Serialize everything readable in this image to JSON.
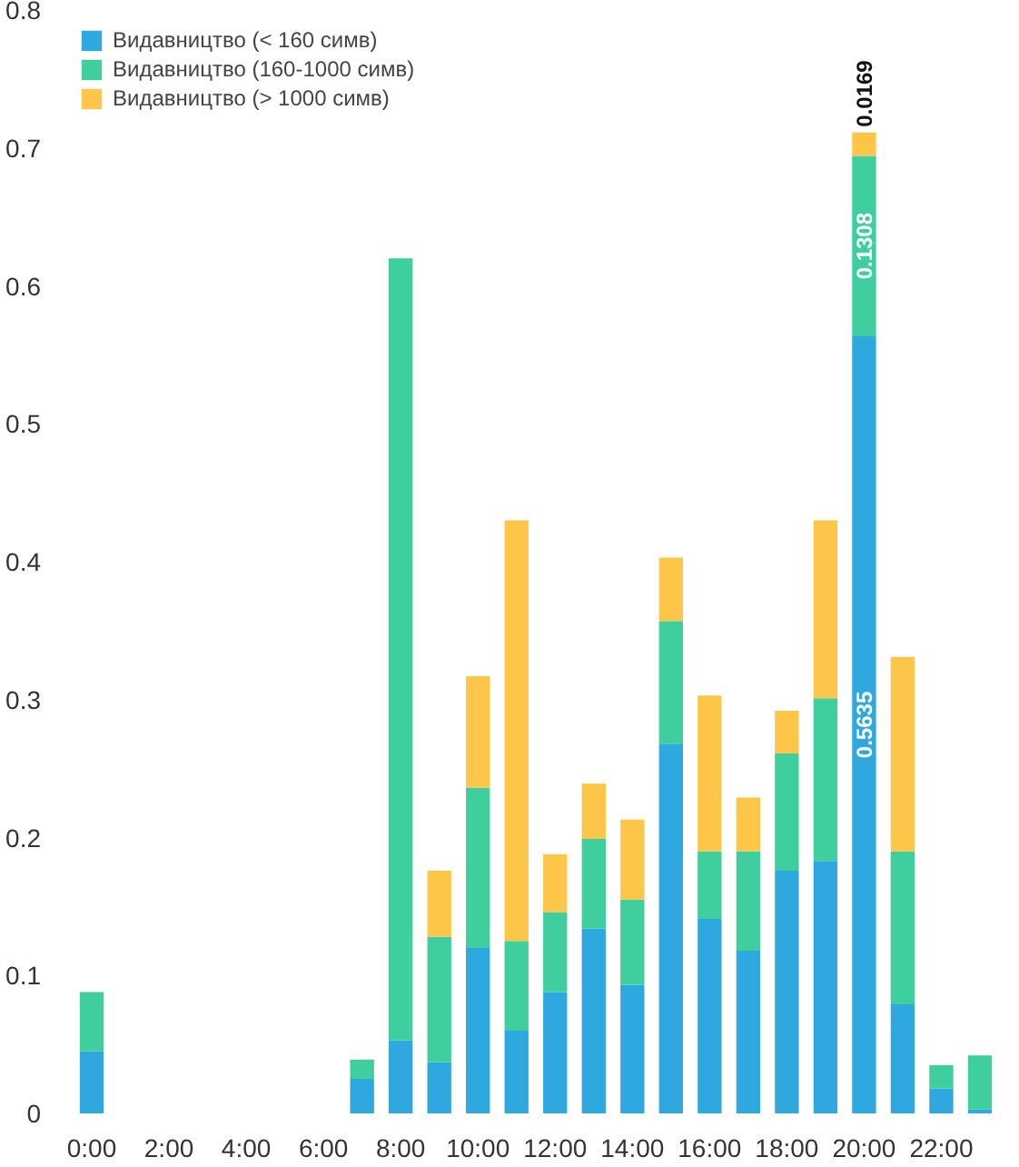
{
  "chart_data": {
    "type": "bar",
    "stacked": true,
    "categories": [
      "0:00",
      null,
      "2:00",
      null,
      "4:00",
      null,
      "6:00",
      null,
      "8:00",
      null,
      "10:00",
      null,
      "12:00",
      null,
      "14:00",
      null,
      "16:00",
      null,
      "18:00",
      null,
      "20:00",
      null,
      "22:00",
      null
    ],
    "ylim": [
      0,
      0.8
    ],
    "yticks": [
      0,
      0.1,
      0.2,
      0.3,
      0.4,
      0.5,
      0.6,
      0.7,
      0.8
    ],
    "grid": false,
    "legend": "top left",
    "series": [
      {
        "name": "Видавництво (< 160 симв)",
        "color": "#2fa8e0",
        "values": [
          0.045,
          0,
          0,
          0,
          0,
          0,
          0,
          0.025,
          0.053,
          0.037,
          0.12,
          0.06,
          0.088,
          0.134,
          0.093,
          0.268,
          0.141,
          0.118,
          0.176,
          0.183,
          0.5635,
          0.079,
          0.018,
          0.003
        ],
        "value_labels": [
          null,
          null,
          null,
          null,
          null,
          null,
          null,
          null,
          null,
          null,
          null,
          null,
          null,
          null,
          null,
          null,
          null,
          null,
          null,
          null,
          "0.5635",
          null,
          null,
          null
        ]
      },
      {
        "name": "Видавництво (160-1000 симв)",
        "color": "#3fcf9f",
        "values": [
          0.043,
          0,
          0,
          0,
          0,
          0,
          0,
          0.014,
          0.567,
          0.091,
          0.116,
          0.065,
          0.058,
          0.065,
          0.062,
          0.089,
          0.049,
          0.072,
          0.085,
          0.118,
          0.1308,
          0.111,
          0.017,
          0.039
        ],
        "value_labels": [
          null,
          null,
          null,
          null,
          null,
          null,
          null,
          null,
          null,
          null,
          null,
          null,
          null,
          null,
          null,
          null,
          null,
          null,
          null,
          null,
          "0.1308",
          null,
          null,
          null
        ]
      },
      {
        "name": "Видавництво (> 1000 симв)",
        "color": "#fdc649",
        "values": [
          0,
          0,
          0,
          0,
          0,
          0,
          0,
          0,
          0,
          0.048,
          0.081,
          0.305,
          0.042,
          0.04,
          0.058,
          0.046,
          0.113,
          0.039,
          0.031,
          0.129,
          0.0169,
          0.141,
          0,
          0
        ],
        "value_labels": [
          null,
          null,
          null,
          null,
          null,
          null,
          null,
          null,
          null,
          null,
          null,
          null,
          null,
          null,
          null,
          null,
          null,
          null,
          null,
          null,
          "0.0169",
          null,
          null,
          null
        ]
      }
    ]
  }
}
